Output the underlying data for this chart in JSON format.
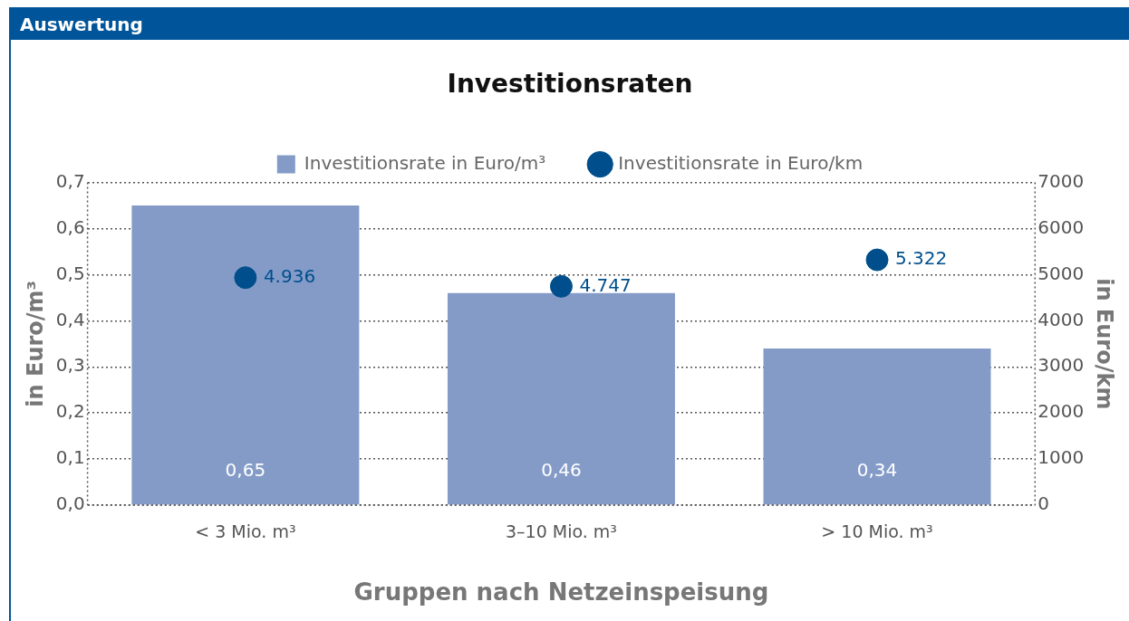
{
  "chart_data": {
    "type": "bar",
    "title": "Investitionsraten",
    "xlabel": "Gruppen nach Netzeinspeisung",
    "ylabel": "in Euro/m³",
    "y2label": "in Euro/km",
    "annotations": [
      "Auswertung"
    ],
    "categories": [
      "< 3 Mio. m³",
      "3–10 Mio. m³",
      "> 10 Mio. m³"
    ],
    "series": [
      {
        "name": "Investitionsrate in Euro/m³",
        "color": "#849bc8",
        "values": [
          0.65,
          0.46,
          0.34
        ],
        "value_labels": [
          "0,65",
          "0,46",
          "0,34"
        ]
      },
      {
        "name": "Investitionsrate in Euro/km",
        "type": "scatter",
        "axis": "y2",
        "color": "#004f8c",
        "x": [
          "< 3 Mio. m³",
          "3–10 Mio. m³",
          "> 10 Mio. m³"
        ],
        "values": [
          4936,
          4747,
          5322
        ],
        "value_labels": [
          "4.936",
          "4.747",
          "5.322"
        ]
      }
    ],
    "ylim": [
      0,
      0.7
    ],
    "yticks": [
      {
        "value": 0,
        "label": "0,0"
      },
      {
        "value": 0.1,
        "label": "0,1"
      },
      {
        "value": 0.2,
        "label": "0,2"
      },
      {
        "value": 0.3,
        "label": "0,3"
      },
      {
        "value": 0.4,
        "label": "0,4"
      },
      {
        "value": 0.5,
        "label": "0,5"
      },
      {
        "value": 0.6,
        "label": "0,6"
      },
      {
        "value": 0.7,
        "label": "0,7"
      }
    ],
    "y2lim": [
      0,
      7000
    ],
    "y2ticks": [
      0,
      1000,
      2000,
      3000,
      4000,
      5000,
      6000,
      7000
    ],
    "grid": "y",
    "legend": "top",
    "marker": "circle"
  }
}
